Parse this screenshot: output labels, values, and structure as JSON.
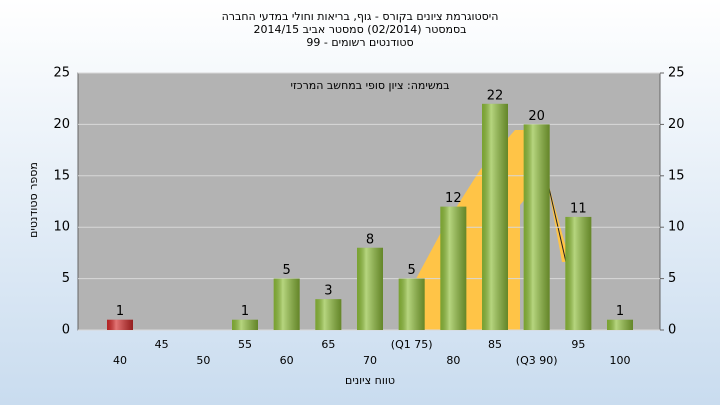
{
  "chart_data": {
    "type": "bar",
    "title": [
      "היסטוגרמת ציונים בקורס - גוף, בריאות וחולי במדעי החברה",
      "בסמסטר  (02/2014)  סמסטר אביב 2014/15",
      "סטודנטים רשומים - 99"
    ],
    "annotation": "במשימה: ציון סופי במחשב המרכזי",
    "x_label": "טווח ציונים",
    "y_label": "מספר סטודנטים",
    "categories": [
      "40",
      "45",
      "50",
      "55",
      "60",
      "65",
      "70",
      "(Q1 75)",
      "80",
      "85",
      "(Q3 90)",
      "95",
      "100"
    ],
    "values": [
      1,
      0,
      0,
      1,
      5,
      3,
      8,
      5,
      12,
      22,
      20,
      11,
      1
    ],
    "colors": [
      "#d42a2a",
      "#8fbf3a",
      "#8fbf3a",
      "#8fbf3a",
      "#8fbf3a",
      "#8fbf3a",
      "#8fbf3a",
      "#8fbf3a",
      "#8fbf3a",
      "#8fbf3a",
      "#8fbf3a",
      "#8fbf3a",
      "#8fbf3a"
    ],
    "ylim": [
      0,
      25
    ],
    "yticks": [
      0,
      5,
      10,
      15,
      20,
      25
    ],
    "y2lim": [
      0,
      25
    ],
    "y2ticks": [
      0,
      5,
      10,
      15,
      20,
      25
    ],
    "grid": true
  }
}
